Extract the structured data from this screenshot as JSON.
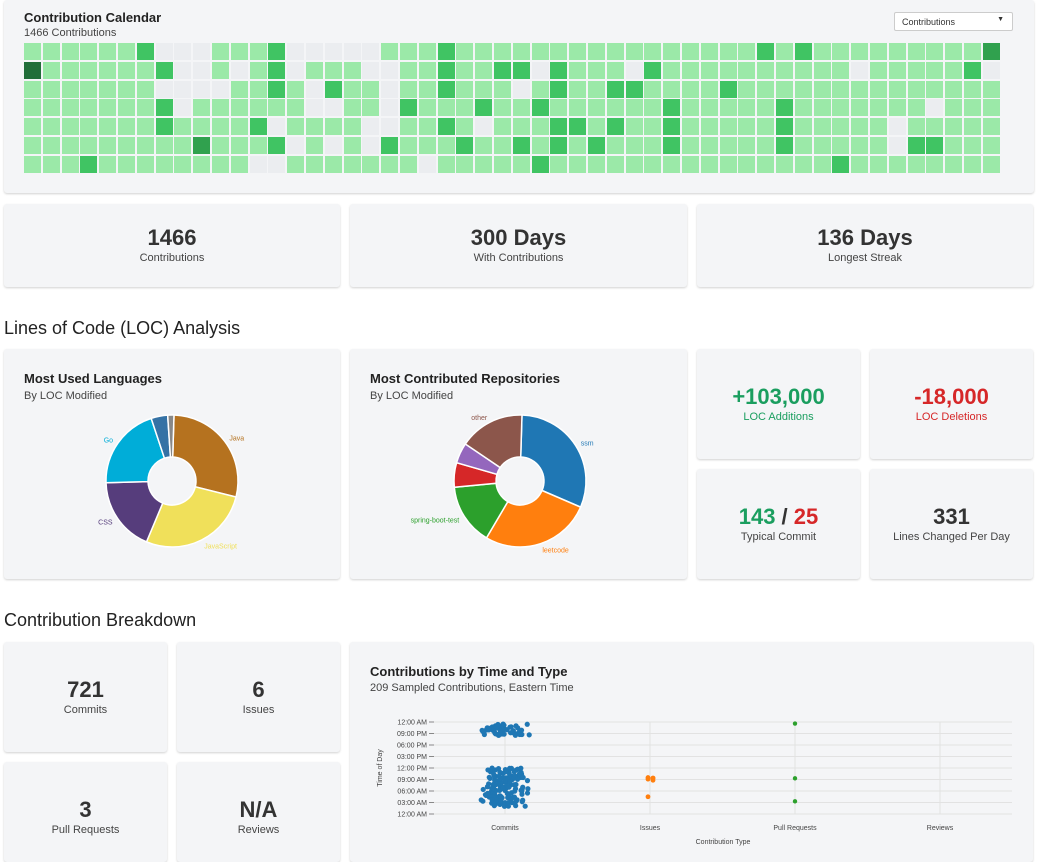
{
  "calendar": {
    "title": "Contribution Calendar",
    "subtitle": "1466 Contributions",
    "dropdown_value": "Contributions",
    "colors": {
      "empty": "#ebedf0",
      "l1": "#9be9a8",
      "l2": "#40c463",
      "l3": "#30a14e",
      "l4": "#216e39"
    },
    "rows": [
      "1111112000111200000111211111111111111112121111111113201111002111",
      "4111111200101201110011211220211102111111111101111120121111011111",
      "1111111000011210211011211101211221111211111111111111111111110101",
      "1111111201111110011021112112111111211111211111110111111100110110",
      "1111111211112011110011210111221211211111211111011111111011100111",
      "1111111113111201010211121121212111211111211111022111111100011000",
      "1112111111110011111110111112111111111111111211111111111111111111"
    ]
  },
  "stats": [
    {
      "value": "1466",
      "label": "Contributions"
    },
    {
      "value": "300 Days",
      "label": "With Contributions"
    },
    {
      "value": "136 Days",
      "label": "Longest Streak"
    }
  ],
  "loc_section": {
    "title": "Lines of Code (LOC) Analysis"
  },
  "languages": {
    "title": "Most Used Languages",
    "subtitle": "By LOC Modified",
    "slices": [
      {
        "name": "Java",
        "value": 28,
        "color": "#b5721f"
      },
      {
        "name": "JavaScript",
        "value": 27,
        "color": "#f0e05a"
      },
      {
        "name": "CSS",
        "value": 18,
        "color": "#563d7c"
      },
      {
        "name": "Go",
        "value": 20,
        "color": "#00add8"
      },
      {
        "name": "",
        "value": 4,
        "color": "#3572a5"
      },
      {
        "name": "",
        "value": 1.5,
        "color": "#888888"
      }
    ]
  },
  "repos": {
    "title": "Most Contributed Repositories",
    "subtitle": "By LOC Modified",
    "slices": [
      {
        "name": "ssm",
        "value": 31,
        "color": "#1f77b4"
      },
      {
        "name": "leetcode",
        "value": 27,
        "color": "#ff7f0e"
      },
      {
        "name": "spring-boot-test",
        "value": 15,
        "color": "#2ca02c"
      },
      {
        "name": "",
        "value": 6,
        "color": "#d62728"
      },
      {
        "name": "",
        "value": 5,
        "color": "#9467bd"
      },
      {
        "name": "other",
        "value": 16,
        "color": "#8c564b"
      }
    ]
  },
  "loc_stats": {
    "additions": {
      "value": "+103,000",
      "label": "LOC Additions",
      "color": "#1a9e5f"
    },
    "deletions": {
      "value": "-18,000",
      "label": "LOC Deletions",
      "color": "#d62728"
    },
    "typical": {
      "add": "143",
      "sep": " / ",
      "del": "25",
      "label": "Typical Commit"
    },
    "per_day": {
      "value": "331",
      "label": "Lines Changed Per Day"
    }
  },
  "breakdown_section": {
    "title": "Contribution Breakdown"
  },
  "breakdown": [
    {
      "value": "721",
      "label": "Commits"
    },
    {
      "value": "6",
      "label": "Issues"
    },
    {
      "value": "3",
      "label": "Pull Requests"
    },
    {
      "value": "N/A",
      "label": "Reviews"
    }
  ],
  "scatter": {
    "title": "Contributions by Time and Type",
    "subtitle": "209 Sampled Contributions, Eastern Time",
    "xlabel": "Contribution Type",
    "ylabel": "Time of Day",
    "yticks": [
      "12:00 AM",
      "09:00 PM",
      "06:00 PM",
      "03:00 PM",
      "12:00 PM",
      "09:00 AM",
      "06:00 AM",
      "03:00 AM",
      "12:00 AM"
    ],
    "categories": [
      "Commits",
      "Issues",
      "Pull Requests",
      "Reviews"
    ],
    "colors": {
      "Commits": "#1f77b4",
      "Issues": "#ff7f0e",
      "Pull Requests": "#2ca02c"
    }
  },
  "chart_data": {
    "type": "scatter",
    "title": "Contributions by Time and Type",
    "xlabel": "Contribution Type",
    "ylabel": "Time of Day",
    "categories": [
      "Commits",
      "Issues",
      "Pull Requests",
      "Reviews"
    ],
    "ylim": [
      0,
      24
    ],
    "series": [
      {
        "name": "Commits",
        "clusters": [
          {
            "hour_from": 20.5,
            "hour_to": 23.5,
            "count": 50
          },
          {
            "hour_from": 2,
            "hour_to": 12,
            "count": 150
          }
        ]
      },
      {
        "name": "Issues",
        "hours": [
          9.5,
          9.3,
          9.1,
          8.8,
          4.5,
          9.4
        ]
      },
      {
        "name": "Pull Requests",
        "hours": [
          23.6,
          9.3,
          3.3
        ]
      }
    ]
  }
}
